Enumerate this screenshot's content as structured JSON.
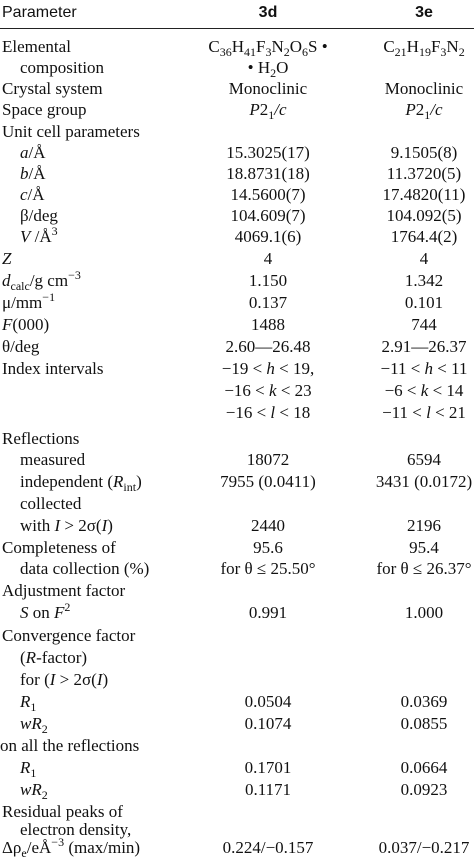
{
  "header": {
    "parameter": "Parameter",
    "col_a": "3d",
    "col_b": "3e"
  },
  "formulas": {
    "a": {
      "p1": "C",
      "s1": "36",
      "p2": "H",
      "s2": "41",
      "p3": "F",
      "s3": "3",
      "p4": "N",
      "s4": "2",
      "p5": "O",
      "s5": "6",
      "p6": "S •",
      "line2_prefix": "• H",
      "line2_sub": "2",
      "line2_suffix": "O"
    },
    "b": {
      "p1": "C",
      "s1": "21",
      "p2": "H",
      "s2": "19",
      "p3": "F",
      "s3": "3",
      "p4": "N",
      "s4": "2"
    }
  },
  "labels": {
    "elemental": "Elemental",
    "composition": "composition",
    "crystal_system": "Crystal system",
    "space_group": "Space group",
    "unit_cell": "Unit cell parameters",
    "a": "a",
    "a_unit": "/Å",
    "b": "b",
    "b_unit": "/Å",
    "c": "c",
    "c_unit": "/Å",
    "beta": "β/deg",
    "v": "V",
    "v_unit": " /Å",
    "v_sup": "3",
    "z": "Z",
    "dcalc_d": "d",
    "dcalc_sub": "calc",
    "dcalc_unit": "/g cm",
    "dcalc_sup": "−3",
    "mu": "μ/mm",
    "mu_sup": "−1",
    "f000_f": "F",
    "f000_rest": "(000)",
    "theta": "θ/deg",
    "index_intervals": "Index intervals",
    "reflections": "Reflections",
    "measured": "measured",
    "independent_pre": "independent (",
    "independent_r": "R",
    "independent_sub": "int",
    "independent_post": ")",
    "collected": "collected",
    "with_i_pre": "with ",
    "with_i_i": "I",
    "with_i_mid": " > 2σ(",
    "with_i_i2": "I",
    "with_i_post": ")",
    "completeness1": "Completeness of",
    "completeness2": "data collection (%)",
    "adjustment": "Adjustment factor",
    "s_on_f_s": "S",
    "s_on_f_mid": " on ",
    "s_on_f_f": "F",
    "s_on_f_sup": "2",
    "convergence": "Convergence factor",
    "rfactor_pre": "(",
    "rfactor_r": "R",
    "rfactor_post": "-factor)",
    "for_i_pre": "for (",
    "for_i_i": "I",
    "for_i_mid": " > 2σ(",
    "for_i_i2": "I",
    "for_i_post": ")",
    "r1_r": "R",
    "r1_sub": "1",
    "wr2_w": "wR",
    "wr2_sub": "2",
    "all_reflections": "on all the reflections",
    "residual1": "Residual peaks of",
    "residual2": "electron density,",
    "delta_pre": "Δρ",
    "delta_sub": "e",
    "delta_mid": "/eÅ",
    "delta_sup": "−3",
    "delta_post": " (max/min)"
  },
  "col_a": {
    "crystal_system": "Monoclinic",
    "sg_p": "P",
    "sg_2": "2",
    "sg_sub": "1",
    "sg_c": "/c",
    "a": "15.3025(17)",
    "b": "18.8731(18)",
    "c": "14.5600(7)",
    "beta": "104.609(7)",
    "v": "4069.1(6)",
    "z": "4",
    "dcalc": "1.150",
    "mu": "0.137",
    "f000": "1488",
    "theta": "2.60—26.48",
    "h_lo": "−19 < ",
    "h_var": "h",
    "h_hi": " < 19,",
    "k_lo": "−16 < ",
    "k_var": "k",
    "k_hi": " < 23",
    "l_lo": "−16 < ",
    "l_var": "l",
    "l_hi": " < 18",
    "measured": "18072",
    "independent": "7955 (0.0411)",
    "collected": "2440",
    "completeness": "95.6",
    "theta_cond": "for θ ≤ 25.50°",
    "s_on_f": "0.991",
    "r1_obs": "0.0504",
    "wr2_obs": "0.1074",
    "r1_all": "0.1701",
    "wr2_all": "0.1171",
    "delta": "0.224/−0.157"
  },
  "col_b": {
    "crystal_system": "Monoclinic",
    "sg_p": "P",
    "sg_2": "2",
    "sg_sub": "1",
    "sg_c": "/c",
    "a": "9.1505(8)",
    "b": "11.3720(5)",
    "c": "17.4820(11)",
    "beta": "104.092(5)",
    "v": "1764.4(2)",
    "z": "4",
    "dcalc": "1.342",
    "mu": "0.101",
    "f000": "744",
    "theta": "2.91—26.37",
    "h_lo": "−11 < ",
    "h_var": "h",
    "h_hi": " < 11",
    "k_lo": "−6 < ",
    "k_var": "k",
    "k_hi": " < 14",
    "l_lo": "−11 < ",
    "l_var": "l",
    "l_hi": " < 21",
    "measured": "6594",
    "independent": "3431 (0.0172)",
    "collected": "2196",
    "completeness": "95.4",
    "theta_cond": "for θ ≤ 26.37°",
    "s_on_f": "1.000",
    "r1_obs": "0.0369",
    "wr2_obs": "0.0855",
    "r1_all": "0.0664",
    "wr2_all": "0.0923",
    "delta": "0.037/−0.217"
  }
}
